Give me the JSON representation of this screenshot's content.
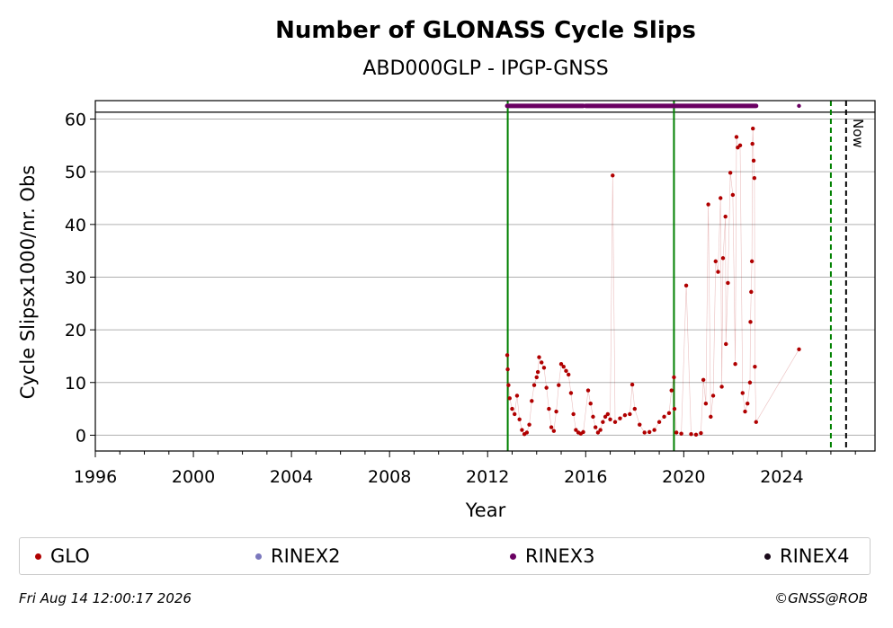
{
  "chart_data": {
    "type": "scatter",
    "title": "Number of GLONASS Cycle Slips",
    "subtitle": "ABD000GLP - IPGP-GNSS",
    "xlabel": "Year",
    "ylabel": "Cycle Slipsx1000/nr. Obs",
    "xlim": [
      1996,
      2027.8
    ],
    "ylim": [
      -3,
      63.5
    ],
    "x_ticks": [
      1996,
      2000,
      2004,
      2008,
      2012,
      2016,
      2020,
      2024
    ],
    "y_ticks": [
      0,
      10,
      20,
      30,
      40,
      50,
      60
    ],
    "grid": "horizontal",
    "legend_position": "bottom",
    "series": [
      {
        "name": "GLO",
        "color": "#b00000",
        "points": [
          [
            2012.8,
            15.2
          ],
          [
            2012.82,
            12.5
          ],
          [
            2012.85,
            9.5
          ],
          [
            2012.9,
            7.0
          ],
          [
            2013.0,
            5.0
          ],
          [
            2013.1,
            4.0
          ],
          [
            2013.2,
            7.5
          ],
          [
            2013.3,
            3.0
          ],
          [
            2013.4,
            1.0
          ],
          [
            2013.5,
            0.2
          ],
          [
            2013.6,
            0.5
          ],
          [
            2013.7,
            2.0
          ],
          [
            2013.8,
            6.5
          ],
          [
            2013.9,
            9.5
          ],
          [
            2014.0,
            11.0
          ],
          [
            2014.05,
            12.0
          ],
          [
            2014.1,
            14.8
          ],
          [
            2014.2,
            13.8
          ],
          [
            2014.3,
            12.8
          ],
          [
            2014.4,
            9.0
          ],
          [
            2014.5,
            5.0
          ],
          [
            2014.6,
            1.5
          ],
          [
            2014.7,
            0.8
          ],
          [
            2014.8,
            4.5
          ],
          [
            2014.9,
            9.5
          ],
          [
            2015.0,
            13.5
          ],
          [
            2015.1,
            13.0
          ],
          [
            2015.2,
            12.2
          ],
          [
            2015.3,
            11.5
          ],
          [
            2015.4,
            8.0
          ],
          [
            2015.5,
            4.0
          ],
          [
            2015.6,
            1.0
          ],
          [
            2015.7,
            0.5
          ],
          [
            2015.8,
            0.3
          ],
          [
            2015.9,
            0.6
          ],
          [
            2016.1,
            8.5
          ],
          [
            2016.2,
            6.0
          ],
          [
            2016.3,
            3.5
          ],
          [
            2016.4,
            1.5
          ],
          [
            2016.5,
            0.5
          ],
          [
            2016.6,
            1.0
          ],
          [
            2016.7,
            2.5
          ],
          [
            2016.8,
            3.5
          ],
          [
            2016.9,
            4.0
          ],
          [
            2017.0,
            3.0
          ],
          [
            2017.1,
            49.3
          ],
          [
            2017.2,
            2.5
          ],
          [
            2017.4,
            3.2
          ],
          [
            2017.6,
            3.8
          ],
          [
            2017.8,
            4.0
          ],
          [
            2017.9,
            9.6
          ],
          [
            2018.0,
            5.0
          ],
          [
            2018.2,
            2.0
          ],
          [
            2018.4,
            0.5
          ],
          [
            2018.6,
            0.6
          ],
          [
            2018.8,
            1.0
          ],
          [
            2019.0,
            2.5
          ],
          [
            2019.2,
            3.5
          ],
          [
            2019.4,
            4.2
          ],
          [
            2019.5,
            8.5
          ],
          [
            2019.6,
            11.0
          ],
          [
            2019.62,
            5.0
          ],
          [
            2019.7,
            0.5
          ],
          [
            2019.9,
            0.3
          ],
          [
            2020.1,
            28.4
          ],
          [
            2020.3,
            0.2
          ],
          [
            2020.5,
            0.1
          ],
          [
            2020.7,
            0.4
          ],
          [
            2020.8,
            10.5
          ],
          [
            2020.9,
            6.0
          ],
          [
            2021.0,
            43.8
          ],
          [
            2021.1,
            3.5
          ],
          [
            2021.2,
            7.5
          ],
          [
            2021.3,
            33.0
          ],
          [
            2021.4,
            31.0
          ],
          [
            2021.5,
            45.0
          ],
          [
            2021.55,
            9.2
          ],
          [
            2021.6,
            33.6
          ],
          [
            2021.7,
            41.5
          ],
          [
            2021.72,
            17.3
          ],
          [
            2021.8,
            28.9
          ],
          [
            2021.9,
            49.8
          ],
          [
            2022.0,
            45.6
          ],
          [
            2022.1,
            13.5
          ],
          [
            2022.15,
            56.6
          ],
          [
            2022.2,
            54.6
          ],
          [
            2022.3,
            55.0
          ],
          [
            2022.4,
            8.0
          ],
          [
            2022.5,
            4.5
          ],
          [
            2022.6,
            6.0
          ],
          [
            2022.7,
            10.0
          ],
          [
            2022.72,
            21.5
          ],
          [
            2022.75,
            27.2
          ],
          [
            2022.78,
            33.0
          ],
          [
            2022.8,
            55.3
          ],
          [
            2022.82,
            58.2
          ],
          [
            2022.85,
            52.1
          ],
          [
            2022.88,
            48.8
          ],
          [
            2022.9,
            13.0
          ],
          [
            2022.95,
            2.5
          ],
          [
            2024.7,
            16.3
          ]
        ]
      },
      {
        "name": "RINEX2",
        "color": "#7b78bd",
        "points": []
      },
      {
        "name": "RINEX3",
        "color": "#6a0062",
        "y_value": 62.5,
        "segments": [
          [
            2012.8,
            2015.9
          ],
          [
            2016.0,
            2019.6
          ],
          [
            2019.6,
            2022.95
          ]
        ],
        "points": [
          [
            2024.7,
            62.5
          ]
        ]
      },
      {
        "name": "RINEX4",
        "color": "#1a0a1a",
        "points": []
      }
    ],
    "vertical_lines": [
      {
        "x": 2012.82,
        "color": "#008000",
        "style": "solid"
      },
      {
        "x": 2019.6,
        "color": "#008000",
        "style": "solid"
      },
      {
        "x": 2026.0,
        "color": "#008000",
        "style": "dashed"
      },
      {
        "x": 2026.62,
        "color": "#000000",
        "style": "dashed",
        "label": "Now"
      }
    ],
    "horizontal_line": 61.3
  },
  "footer": {
    "timestamp": "Fri Aug 14 12:00:17 2026",
    "credit": "©GNSS@ROB"
  }
}
